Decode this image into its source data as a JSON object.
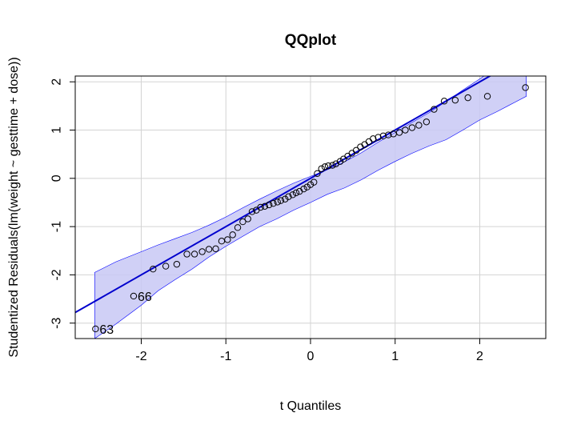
{
  "chart_data": {
    "type": "scatter",
    "title": "QQplot",
    "xlabel": "t Quantiles",
    "ylabel": "Studentized Residuals(lm(weight ~ gesttime + dose))",
    "xlim": [
      -2.78,
      2.78
    ],
    "ylim": [
      -3.32,
      2.12
    ],
    "x_ticks": [
      -2,
      -1,
      0,
      1,
      2
    ],
    "y_ticks": [
      -3,
      -2,
      -1,
      0,
      1,
      2
    ],
    "x_tick_labels": [
      "-2",
      "-1",
      "0",
      "1",
      "2"
    ],
    "y_tick_labels": [
      "-3",
      "-2",
      "-1",
      "0",
      "1",
      "2"
    ],
    "grid": true,
    "colors": {
      "line": "#0000cd",
      "band_fill": "#c8c8f5",
      "band_stroke": "#0000ff"
    },
    "reference_line": {
      "intercept": 0.0,
      "slope": 1.0
    },
    "confidence_band": {
      "x": [
        -2.55,
        -2.3,
        -2.0,
        -1.8,
        -1.6,
        -1.4,
        -1.2,
        -1.0,
        -0.8,
        -0.6,
        -0.4,
        -0.2,
        0.0,
        0.2,
        0.4,
        0.6,
        0.8,
        1.0,
        1.2,
        1.4,
        1.6,
        1.8,
        2.0,
        2.2,
        2.55
      ],
      "upper": [
        -1.95,
        -1.73,
        -1.52,
        -1.38,
        -1.25,
        -1.12,
        -0.97,
        -0.8,
        -0.61,
        -0.43,
        -0.26,
        -0.1,
        0.04,
        0.18,
        0.34,
        0.53,
        0.75,
        0.95,
        1.16,
        1.36,
        1.59,
        1.83,
        2.06,
        2.3,
        2.7
      ],
      "lower": [
        -3.32,
        -3.02,
        -2.63,
        -2.33,
        -2.1,
        -1.88,
        -1.63,
        -1.41,
        -1.2,
        -1.0,
        -0.84,
        -0.66,
        -0.5,
        -0.33,
        -0.2,
        -0.03,
        0.17,
        0.35,
        0.52,
        0.67,
        0.8,
        1.0,
        1.21,
        1.38,
        1.7
      ]
    },
    "points": [
      {
        "x": -2.54,
        "y": -3.12
      },
      {
        "x": -2.09,
        "y": -2.44
      },
      {
        "x": -1.86,
        "y": -1.88
      },
      {
        "x": -1.71,
        "y": -1.82
      },
      {
        "x": -1.58,
        "y": -1.78
      },
      {
        "x": -1.46,
        "y": -1.57
      },
      {
        "x": -1.37,
        "y": -1.57
      },
      {
        "x": -1.28,
        "y": -1.52
      },
      {
        "x": -1.2,
        "y": -1.47
      },
      {
        "x": -1.12,
        "y": -1.46
      },
      {
        "x": -1.05,
        "y": -1.3
      },
      {
        "x": -0.98,
        "y": -1.27
      },
      {
        "x": -0.92,
        "y": -1.17
      },
      {
        "x": -0.86,
        "y": -1.02
      },
      {
        "x": -0.8,
        "y": -0.9
      },
      {
        "x": -0.74,
        "y": -0.84
      },
      {
        "x": -0.69,
        "y": -0.69
      },
      {
        "x": -0.64,
        "y": -0.66
      },
      {
        "x": -0.59,
        "y": -0.6
      },
      {
        "x": -0.54,
        "y": -0.58
      },
      {
        "x": -0.49,
        "y": -0.55
      },
      {
        "x": -0.44,
        "y": -0.52
      },
      {
        "x": -0.39,
        "y": -0.49
      },
      {
        "x": -0.35,
        "y": -0.46
      },
      {
        "x": -0.3,
        "y": -0.43
      },
      {
        "x": -0.26,
        "y": -0.38
      },
      {
        "x": -0.21,
        "y": -0.34
      },
      {
        "x": -0.17,
        "y": -0.3
      },
      {
        "x": -0.13,
        "y": -0.27
      },
      {
        "x": -0.08,
        "y": -0.22
      },
      {
        "x": -0.04,
        "y": -0.18
      },
      {
        "x": 0.0,
        "y": -0.13
      },
      {
        "x": 0.04,
        "y": -0.08
      },
      {
        "x": 0.08,
        "y": 0.1
      },
      {
        "x": 0.13,
        "y": 0.2
      },
      {
        "x": 0.17,
        "y": 0.24
      },
      {
        "x": 0.21,
        "y": 0.26
      },
      {
        "x": 0.26,
        "y": 0.27
      },
      {
        "x": 0.3,
        "y": 0.3
      },
      {
        "x": 0.35,
        "y": 0.35
      },
      {
        "x": 0.39,
        "y": 0.4
      },
      {
        "x": 0.44,
        "y": 0.46
      },
      {
        "x": 0.49,
        "y": 0.52
      },
      {
        "x": 0.54,
        "y": 0.58
      },
      {
        "x": 0.59,
        "y": 0.65
      },
      {
        "x": 0.64,
        "y": 0.7
      },
      {
        "x": 0.69,
        "y": 0.76
      },
      {
        "x": 0.74,
        "y": 0.82
      },
      {
        "x": 0.8,
        "y": 0.85
      },
      {
        "x": 0.86,
        "y": 0.88
      },
      {
        "x": 0.92,
        "y": 0.9
      },
      {
        "x": 0.98,
        "y": 0.92
      },
      {
        "x": 1.05,
        "y": 0.95
      },
      {
        "x": 1.12,
        "y": 1.0
      },
      {
        "x": 1.2,
        "y": 1.05
      },
      {
        "x": 1.28,
        "y": 1.1
      },
      {
        "x": 1.37,
        "y": 1.17
      },
      {
        "x": 1.46,
        "y": 1.43
      },
      {
        "x": 1.58,
        "y": 1.6
      },
      {
        "x": 1.71,
        "y": 1.62
      },
      {
        "x": 1.86,
        "y": 1.67
      },
      {
        "x": 2.09,
        "y": 1.7
      },
      {
        "x": 2.54,
        "y": 1.88
      }
    ],
    "annotations": [
      {
        "text": "66",
        "x": -2.09,
        "y": -2.44
      },
      {
        "text": "63",
        "x": -2.54,
        "y": -3.12
      }
    ]
  }
}
